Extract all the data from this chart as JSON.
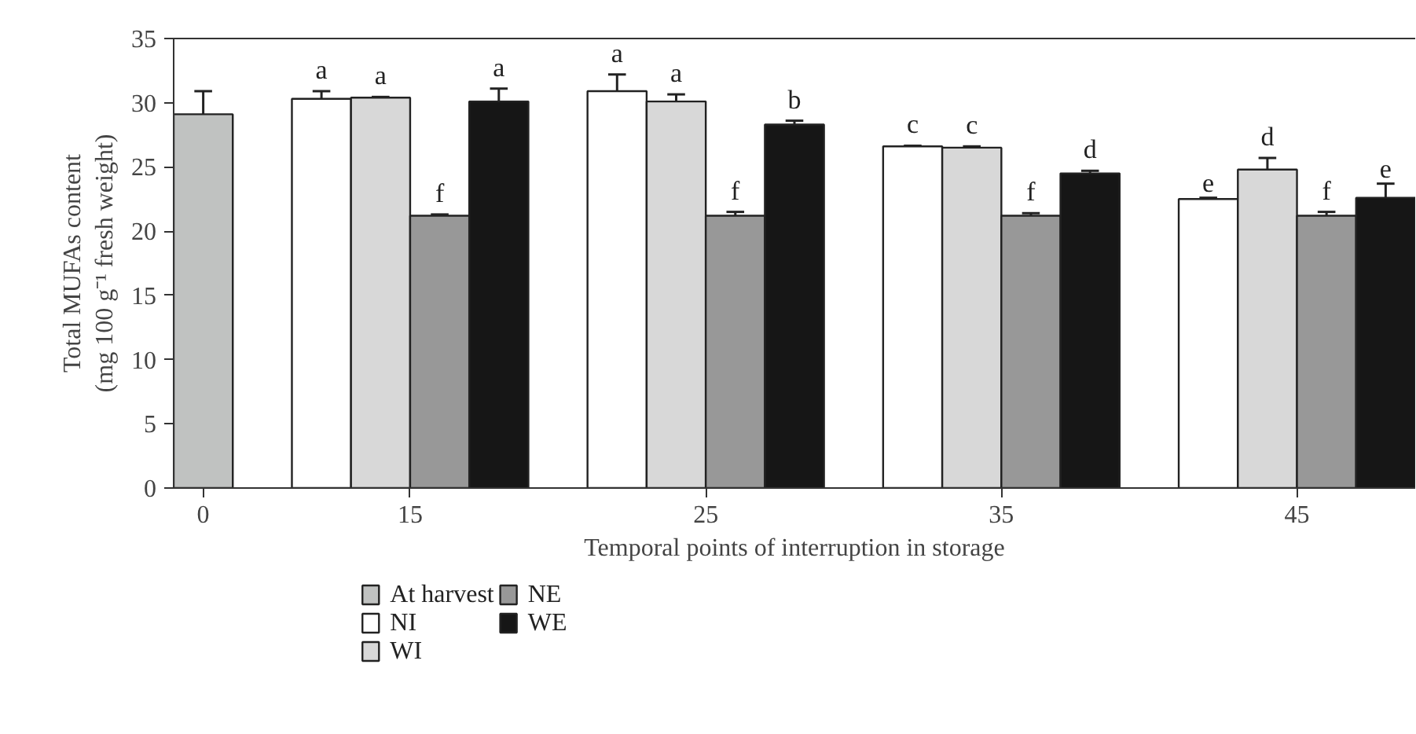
{
  "chart_data": {
    "type": "bar",
    "xlabel": "Temporal points of interruption in storage",
    "ylabel": "Total MUFAs content\n(mg 100 g⁻¹ fresh weight)",
    "categories": [
      "0",
      "15",
      "25",
      "35",
      "45"
    ],
    "ylim": [
      0,
      35
    ],
    "yticks": [
      0,
      5,
      10,
      15,
      20,
      25,
      30,
      35
    ],
    "legend": "bottom",
    "grid": false,
    "series": [
      {
        "name": "At harvest",
        "color": "#c0c2c1",
        "values": [
          29.1,
          null,
          null,
          null,
          null
        ],
        "errors": [
          1.8,
          null,
          null,
          null,
          null
        ],
        "value_labels": [
          null,
          null,
          null,
          null,
          null
        ]
      },
      {
        "name": "NI",
        "color": "#ffffff",
        "values": [
          null,
          30.3,
          30.9,
          26.6,
          22.5
        ],
        "errors": [
          null,
          0.6,
          1.3,
          0.05,
          0.1
        ],
        "value_labels": [
          null,
          "a",
          "a",
          "c",
          "e"
        ]
      },
      {
        "name": "WI",
        "color": "#d8d8d8",
        "values": [
          null,
          30.4,
          30.1,
          26.5,
          24.8
        ],
        "errors": [
          null,
          0.05,
          0.55,
          0.1,
          0.9
        ],
        "value_labels": [
          null,
          "a",
          "a",
          "c",
          "d"
        ]
      },
      {
        "name": "NE",
        "color": "#989898",
        "values": [
          null,
          21.2,
          21.2,
          21.2,
          21.2
        ],
        "errors": [
          null,
          0.1,
          0.3,
          0.2,
          0.3
        ],
        "value_labels": [
          null,
          "f",
          "f",
          "f",
          "f"
        ]
      },
      {
        "name": "WE",
        "color": "#161616",
        "values": [
          null,
          30.1,
          28.3,
          24.5,
          22.6
        ],
        "errors": [
          null,
          1.0,
          0.3,
          0.2,
          1.1
        ],
        "value_labels": [
          null,
          "a",
          "b",
          "d",
          "e"
        ]
      }
    ]
  }
}
